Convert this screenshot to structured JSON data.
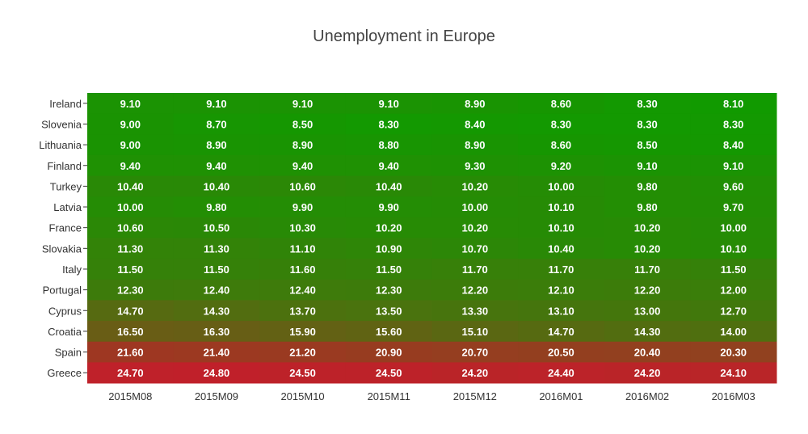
{
  "chart_data": {
    "type": "heatmap",
    "title": "Unemployment in Europe",
    "x": [
      "2015M08",
      "2015M09",
      "2015M10",
      "2015M11",
      "2015M12",
      "2016M01",
      "2016M02",
      "2016M03"
    ],
    "y": [
      "Ireland",
      "Slovenia",
      "Lithuania",
      "Finland",
      "Turkey",
      "Latvia",
      "France",
      "Slovakia",
      "Italy",
      "Portugal",
      "Cyprus",
      "Croatia",
      "Spain",
      "Greece"
    ],
    "z": [
      [
        "9.10",
        "9.10",
        "9.10",
        "9.10",
        "8.90",
        "8.60",
        "8.30",
        "8.10"
      ],
      [
        "9.00",
        "8.70",
        "8.50",
        "8.30",
        "8.40",
        "8.30",
        "8.30",
        "8.30"
      ],
      [
        "9.00",
        "8.90",
        "8.90",
        "8.80",
        "8.90",
        "8.60",
        "8.50",
        "8.40"
      ],
      [
        "9.40",
        "9.40",
        "9.40",
        "9.40",
        "9.30",
        "9.20",
        "9.10",
        "9.10"
      ],
      [
        "10.40",
        "10.40",
        "10.60",
        "10.40",
        "10.20",
        "10.00",
        "9.80",
        "9.60"
      ],
      [
        "10.00",
        "9.80",
        "9.90",
        "9.90",
        "10.00",
        "10.10",
        "9.80",
        "9.70"
      ],
      [
        "10.60",
        "10.50",
        "10.30",
        "10.20",
        "10.20",
        "10.10",
        "10.20",
        "10.00"
      ],
      [
        "11.30",
        "11.30",
        "11.10",
        "10.90",
        "10.70",
        "10.40",
        "10.20",
        "10.10"
      ],
      [
        "11.50",
        "11.50",
        "11.60",
        "11.50",
        "11.70",
        "11.70",
        "11.70",
        "11.50"
      ],
      [
        "12.30",
        "12.40",
        "12.40",
        "12.30",
        "12.20",
        "12.10",
        "12.20",
        "12.00"
      ],
      [
        "14.70",
        "14.30",
        "13.70",
        "13.50",
        "13.30",
        "13.10",
        "13.00",
        "12.70"
      ],
      [
        "16.50",
        "16.30",
        "15.90",
        "15.60",
        "15.10",
        "14.70",
        "14.30",
        "14.00"
      ],
      [
        "21.60",
        "21.40",
        "21.20",
        "20.90",
        "20.70",
        "20.50",
        "20.40",
        "20.30"
      ],
      [
        "24.70",
        "24.80",
        "24.50",
        "24.50",
        "24.20",
        "24.40",
        "24.20",
        "24.10"
      ]
    ],
    "colorscale": {
      "low": "#119a00",
      "high": "#c0202a"
    }
  }
}
